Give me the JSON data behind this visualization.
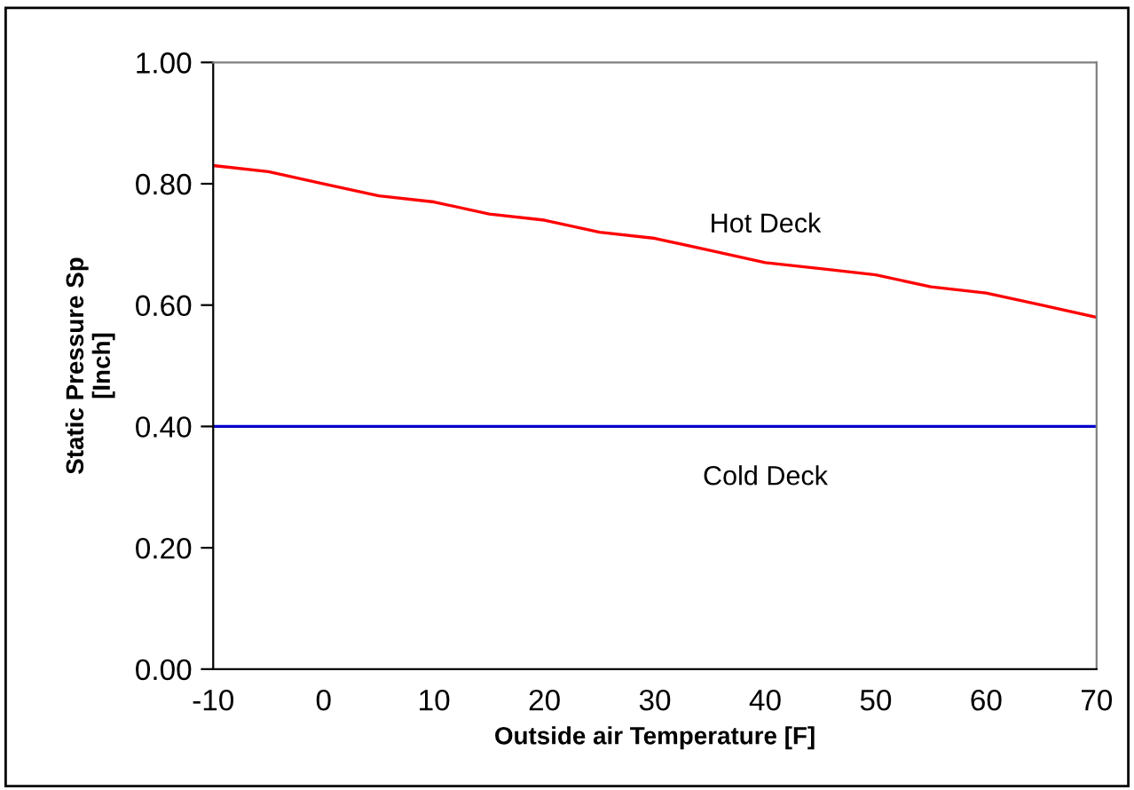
{
  "chart_data": {
    "type": "line",
    "xlabel": "Outside air Temperature [F]",
    "ylabel": "Static Pressure Sp\n[Inch]",
    "x": [
      -10,
      -5,
      0,
      5,
      10,
      15,
      20,
      25,
      30,
      35,
      40,
      45,
      50,
      55,
      60,
      65,
      70
    ],
    "series": [
      {
        "name": "Hot Deck",
        "color": "#ff0000",
        "values": [
          0.83,
          0.82,
          0.8,
          0.78,
          0.77,
          0.75,
          0.74,
          0.72,
          0.71,
          0.69,
          0.67,
          0.66,
          0.65,
          0.63,
          0.62,
          0.6,
          0.58
        ]
      },
      {
        "name": "Cold Deck",
        "color": "#0000cc",
        "values": [
          0.4,
          0.4,
          0.4,
          0.4,
          0.4,
          0.4,
          0.4,
          0.4,
          0.4,
          0.4,
          0.4,
          0.4,
          0.4,
          0.4,
          0.4,
          0.4,
          0.4
        ]
      }
    ],
    "xlim": [
      -10,
      70
    ],
    "xticks": [
      -10,
      0,
      10,
      20,
      30,
      40,
      50,
      60,
      70
    ],
    "ylim": [
      0,
      1
    ],
    "yticks": [
      {
        "value": 0,
        "label": "0.00"
      },
      {
        "value": 0.2,
        "label": "0.20"
      },
      {
        "value": 0.4,
        "label": "0.40"
      },
      {
        "value": 0.6,
        "label": "0.60"
      },
      {
        "value": 0.8,
        "label": "0.80"
      },
      {
        "value": 1,
        "label": "1.00"
      }
    ],
    "grid": false,
    "legend": false,
    "marker": "none",
    "line_style": "solid"
  }
}
